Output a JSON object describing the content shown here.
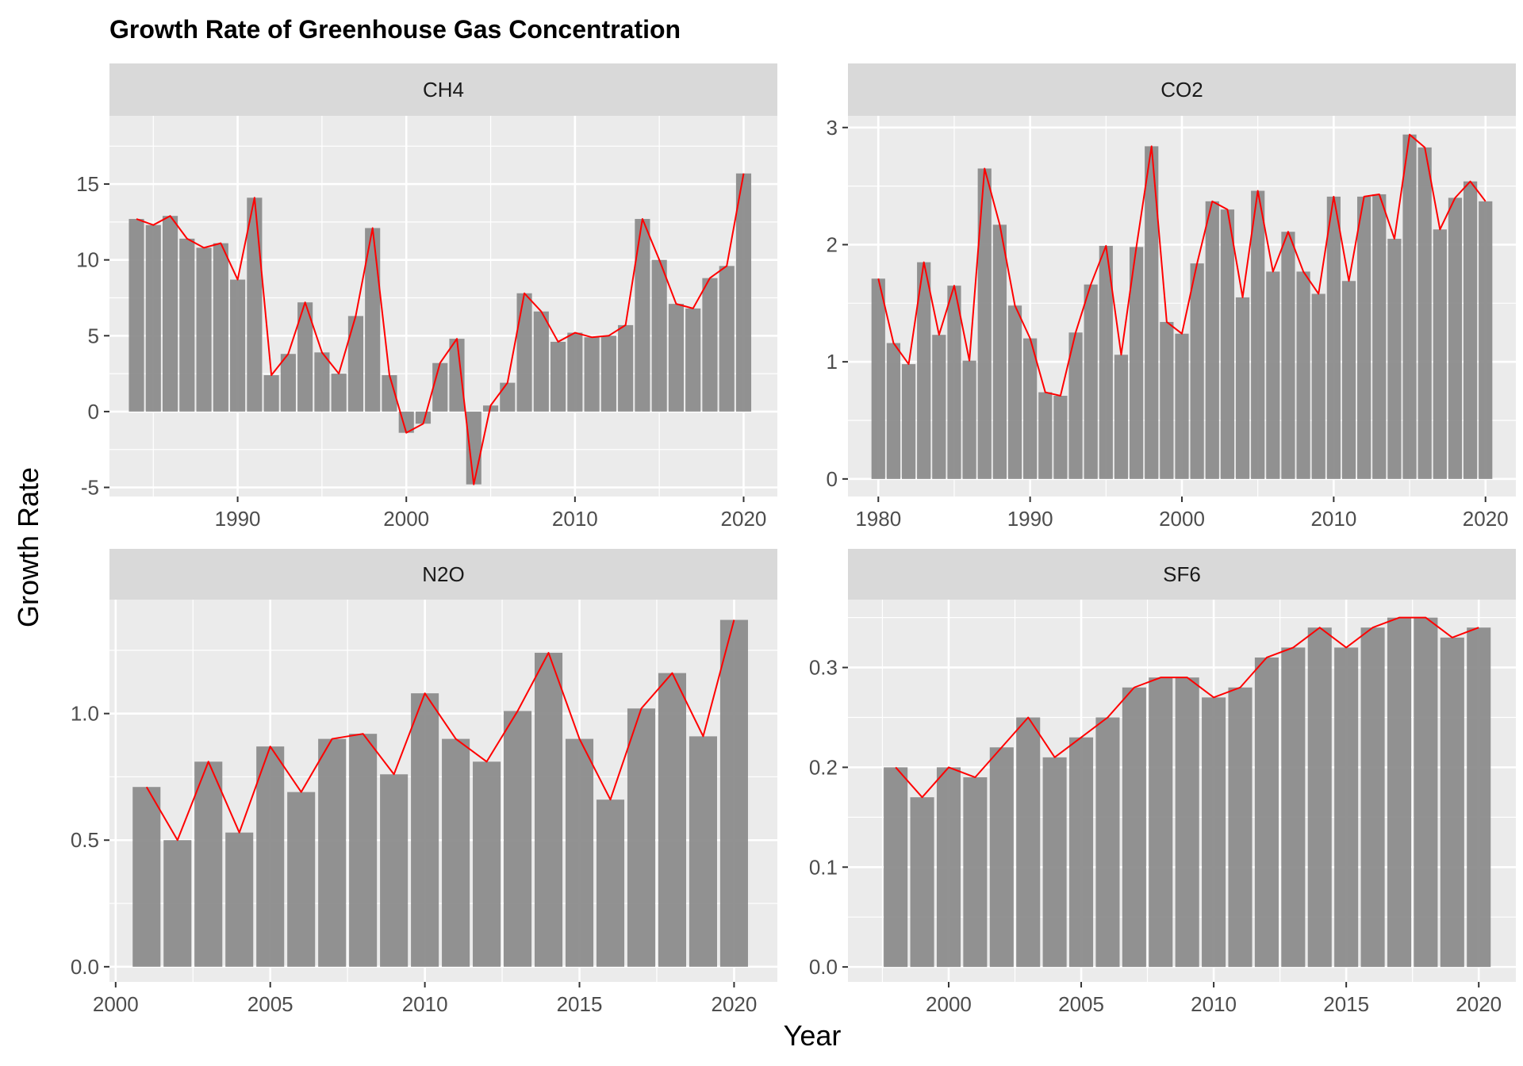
{
  "chart_data": {
    "type": "bar",
    "title": "Growth Rate of Greenhouse Gas Concentration",
    "xlabel": "Year",
    "ylabel": "Growth Rate",
    "grid": true,
    "legend": "none",
    "colors": {
      "bar": "#8c8c8c",
      "line": "#ff0000",
      "panel": "#ebebeb",
      "strip": "#d9d9d9",
      "grid": "#ffffff"
    },
    "panels": [
      {
        "name": "CH4",
        "xlim": [
          1982.4,
          2022.0
        ],
        "ylim": [
          -5.6,
          19.5
        ],
        "xticks": [
          1990,
          2000,
          2010,
          2020
        ],
        "yticks": [
          -5,
          0,
          5,
          10,
          15
        ],
        "ytick_labels": [
          "-5",
          "0",
          "5",
          "10",
          "15"
        ],
        "x": [
          1984,
          1985,
          1986,
          1987,
          1988,
          1989,
          1990,
          1991,
          1992,
          1993,
          1994,
          1995,
          1996,
          1997,
          1998,
          1999,
          2000,
          2001,
          2002,
          2003,
          2004,
          2005,
          2006,
          2007,
          2008,
          2009,
          2010,
          2011,
          2012,
          2013,
          2014,
          2015,
          2016,
          2017,
          2018,
          2019,
          2020
        ],
        "values": [
          12.7,
          12.3,
          12.9,
          11.4,
          10.8,
          11.1,
          8.7,
          14.1,
          2.4,
          3.8,
          7.2,
          3.9,
          2.5,
          6.3,
          12.1,
          2.4,
          -1.4,
          -0.8,
          3.2,
          4.8,
          -4.8,
          0.4,
          1.9,
          7.8,
          6.6,
          4.6,
          5.2,
          4.9,
          5.0,
          5.7,
          12.7,
          10.0,
          7.1,
          6.8,
          8.8,
          9.6,
          15.7
        ]
      },
      {
        "name": "CO2",
        "xlim": [
          1978.0,
          2022.0
        ],
        "ylim": [
          -0.15,
          3.1
        ],
        "xticks": [
          1980,
          1990,
          2000,
          2010,
          2020
        ],
        "yticks": [
          0,
          1,
          2,
          3
        ],
        "ytick_labels": [
          "0",
          "1",
          "2",
          "3"
        ],
        "x": [
          1980,
          1981,
          1982,
          1983,
          1984,
          1985,
          1986,
          1987,
          1988,
          1989,
          1990,
          1991,
          1992,
          1993,
          1994,
          1995,
          1996,
          1997,
          1998,
          1999,
          2000,
          2001,
          2002,
          2003,
          2004,
          2005,
          2006,
          2007,
          2008,
          2009,
          2010,
          2011,
          2012,
          2013,
          2014,
          2015,
          2016,
          2017,
          2018,
          2019,
          2020
        ],
        "values": [
          1.71,
          1.16,
          0.98,
          1.85,
          1.23,
          1.65,
          1.01,
          2.65,
          2.17,
          1.48,
          1.2,
          0.74,
          0.71,
          1.25,
          1.66,
          1.99,
          1.06,
          1.98,
          2.84,
          1.34,
          1.24,
          1.84,
          2.37,
          2.3,
          1.55,
          2.46,
          1.77,
          2.11,
          1.77,
          1.58,
          2.41,
          1.69,
          2.41,
          2.43,
          2.05,
          2.94,
          2.83,
          2.13,
          2.4,
          2.54,
          2.37
        ]
      },
      {
        "name": "N2O",
        "xlim": [
          1999.8,
          2021.4
        ],
        "ylim": [
          -0.06,
          1.45
        ],
        "xticks": [
          2000,
          2005,
          2010,
          2015,
          2020
        ],
        "yticks": [
          0,
          0.5,
          1.0
        ],
        "ytick_labels": [
          "0.0",
          "0.5",
          "1.0"
        ],
        "x": [
          2001,
          2002,
          2003,
          2004,
          2005,
          2006,
          2007,
          2008,
          2009,
          2010,
          2011,
          2012,
          2013,
          2014,
          2015,
          2016,
          2017,
          2018,
          2019,
          2020
        ],
        "values": [
          0.71,
          0.5,
          0.81,
          0.53,
          0.87,
          0.69,
          0.9,
          0.92,
          0.76,
          1.08,
          0.9,
          0.81,
          1.01,
          1.24,
          0.9,
          0.66,
          1.02,
          1.16,
          0.91,
          1.37
        ]
      },
      {
        "name": "SF6",
        "xlim": [
          1996.2,
          2021.4
        ],
        "ylim": [
          -0.015,
          0.368
        ],
        "xticks": [
          2000,
          2005,
          2010,
          2015,
          2020
        ],
        "yticks": [
          0,
          0.1,
          0.2,
          0.3
        ],
        "ytick_labels": [
          "0.0",
          "0.1",
          "0.2",
          "0.3"
        ],
        "x": [
          1998,
          1999,
          2000,
          2001,
          2002,
          2003,
          2004,
          2005,
          2006,
          2007,
          2008,
          2009,
          2010,
          2011,
          2012,
          2013,
          2014,
          2015,
          2016,
          2017,
          2018,
          2019,
          2020
        ],
        "values": [
          0.2,
          0.17,
          0.2,
          0.19,
          0.22,
          0.25,
          0.21,
          0.23,
          0.25,
          0.28,
          0.29,
          0.29,
          0.27,
          0.28,
          0.31,
          0.32,
          0.34,
          0.32,
          0.34,
          0.35,
          0.35,
          0.33,
          0.34
        ]
      }
    ]
  }
}
